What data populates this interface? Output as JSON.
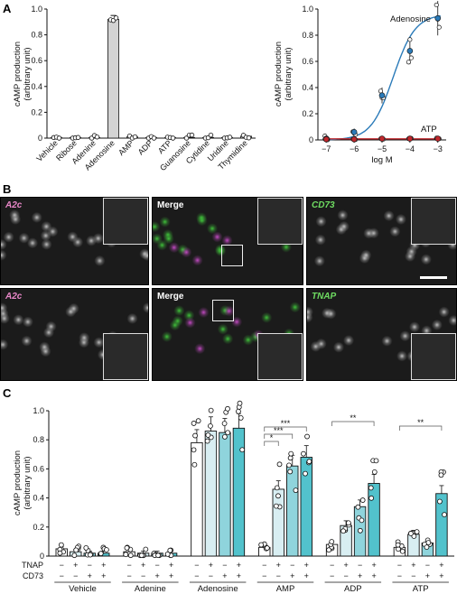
{
  "panels": {
    "a": "A",
    "b": "B",
    "c": "C"
  },
  "chart_data": [
    {
      "type": "bar",
      "categories": [
        "Vehicle",
        "Ribose",
        "Adenine",
        "Adenosine",
        "AMP",
        "ADP",
        "ATP",
        "Guanosine",
        "Cytidine",
        "Uridine",
        "Thymidine"
      ],
      "values": [
        0.005,
        0.005,
        0.005,
        0.92,
        0.01,
        0.005,
        0.005,
        0.005,
        0.005,
        0.005,
        0.015
      ],
      "ylabel": "cAMP production\n(arbitrary unit)",
      "ylim": [
        0,
        1.0
      ],
      "yticks": [
        "0",
        "0.2",
        "0.4",
        "0.6",
        "0.8",
        "1.0"
      ],
      "annotation": "***",
      "bar_color": "#d3d3d3"
    },
    {
      "type": "line",
      "xlabel": "log M",
      "ylabel": "cAMP production\n(arbitrary unit)",
      "xticks": [
        "−7",
        "−6",
        "−5",
        "−4",
        "−3"
      ],
      "xticks_values": [
        -7,
        -6,
        -5,
        -4,
        -3
      ],
      "yticks": [
        "0",
        "0.2",
        "0.4",
        "0.6",
        "0.8",
        "1.0"
      ],
      "ylim": [
        0,
        1.0
      ],
      "xlim": [
        -7.3,
        -2.7
      ],
      "series": [
        {
          "name": "Adenosine",
          "color": "#2b7bb9",
          "x": [
            -7,
            -6,
            -5,
            -4,
            -3
          ],
          "y": [
            0.01,
            0.06,
            0.34,
            0.68,
            0.93
          ]
        },
        {
          "name": "ATP",
          "color": "#c0282d",
          "x": [
            -7,
            -6,
            -5,
            -4,
            -3
          ],
          "y": [
            0.005,
            0.005,
            0.01,
            0.01,
            0.01
          ]
        }
      ]
    },
    {
      "type": "bar",
      "ylabel": "cAMP production\n(arbitrary unit)",
      "ylim": [
        0,
        1.0
      ],
      "yticks": [
        "0",
        "0.2",
        "0.4",
        "0.6",
        "0.8",
        "1.0"
      ],
      "row_labels": [
        "TNAP",
        "CD73"
      ],
      "tnap_signs": [
        "−",
        "+",
        "−",
        "+"
      ],
      "cd73_signs": [
        "−",
        "−",
        "+",
        "+"
      ],
      "colors": [
        "#ffffff",
        "#d8eef2",
        "#8fd4dc",
        "#52c2cc"
      ],
      "groups": [
        {
          "name": "Vehicle",
          "values": [
            0.05,
            0.03,
            0.02,
            0.02
          ]
        },
        {
          "name": "Adenine",
          "values": [
            0.03,
            0.02,
            0.02,
            0.02
          ]
        },
        {
          "name": "Adenosine",
          "values": [
            0.78,
            0.86,
            0.85,
            0.88
          ]
        },
        {
          "name": "AMP",
          "values": [
            0.06,
            0.46,
            0.62,
            0.68
          ]
        },
        {
          "name": "ADP",
          "values": [
            0.08,
            0.21,
            0.34,
            0.5
          ]
        },
        {
          "name": "ATP",
          "values": [
            0.06,
            0.15,
            0.09,
            0.43
          ]
        }
      ],
      "significance": [
        {
          "group": "AMP",
          "label": "*"
        },
        {
          "group": "AMP",
          "label": "***"
        },
        {
          "group": "AMP",
          "label": "***"
        },
        {
          "group": "ADP",
          "label": "**"
        },
        {
          "group": "ATP",
          "label": "**"
        }
      ]
    }
  ],
  "micrographs": [
    {
      "label": "A2c",
      "color": "#e887c8"
    },
    {
      "label": "Merge",
      "color": "#ffffff"
    },
    {
      "label": "CD73",
      "color": "#6fdc62"
    },
    {
      "label": "A2c",
      "color": "#e887c8"
    },
    {
      "label": "Merge",
      "color": "#ffffff"
    },
    {
      "label": "TNAP",
      "color": "#6fdc62"
    }
  ]
}
